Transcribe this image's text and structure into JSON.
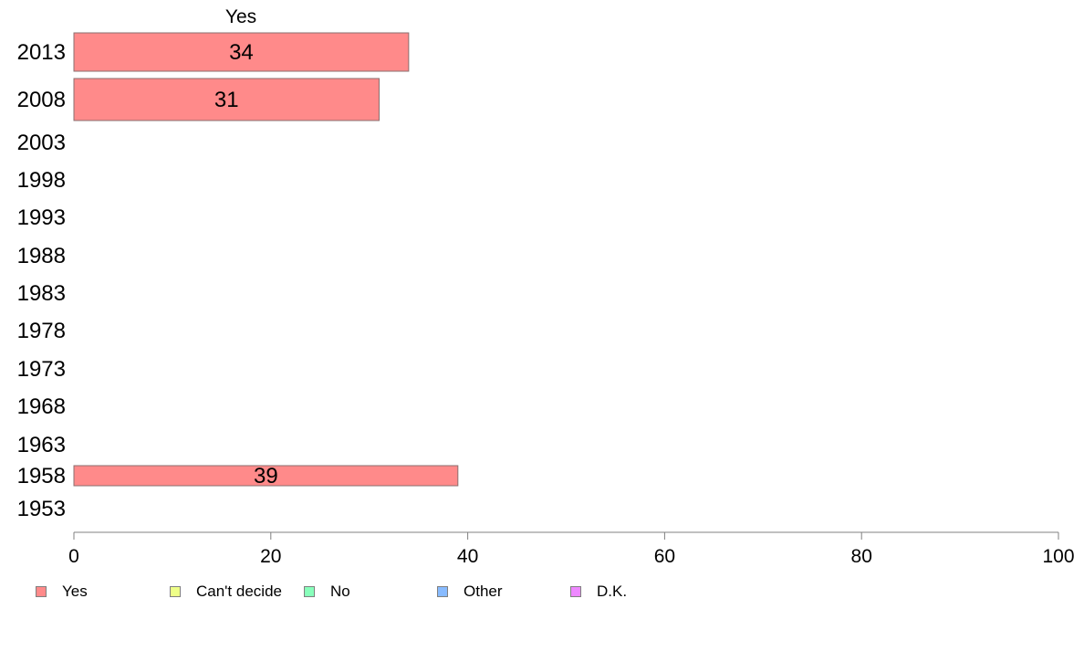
{
  "chart_data": {
    "type": "bar",
    "orientation": "horizontal",
    "title": "Yes",
    "categories": [
      "2013",
      "2008",
      "2003",
      "1998",
      "1993",
      "1988",
      "1983",
      "1978",
      "1973",
      "1968",
      "1963",
      "1958",
      "1953"
    ],
    "series": [
      {
        "name": "Yes",
        "color": "#ff8a8a",
        "values": [
          34,
          31,
          null,
          null,
          null,
          null,
          null,
          null,
          null,
          null,
          null,
          39,
          null
        ],
        "labels": [
          "34",
          "31",
          "",
          "",
          "",
          "",
          "",
          "",
          "",
          "",
          "",
          "39",
          ""
        ]
      }
    ],
    "xlim": [
      0,
      100
    ],
    "x_ticks": [
      "0",
      "20",
      "40",
      "60",
      "80",
      "100"
    ],
    "xlabel": "",
    "ylabel": "",
    "grid": false,
    "legend_placement": "bottom-left",
    "legend": [
      {
        "label": "Yes",
        "color": "#ff8a8a"
      },
      {
        "label": "Can't decide",
        "color": "#eeff88"
      },
      {
        "label": "No",
        "color": "#88ffbb"
      },
      {
        "label": "Other",
        "color": "#88bbff"
      },
      {
        "label": "D.K.",
        "color": "#ee88ff"
      }
    ]
  }
}
